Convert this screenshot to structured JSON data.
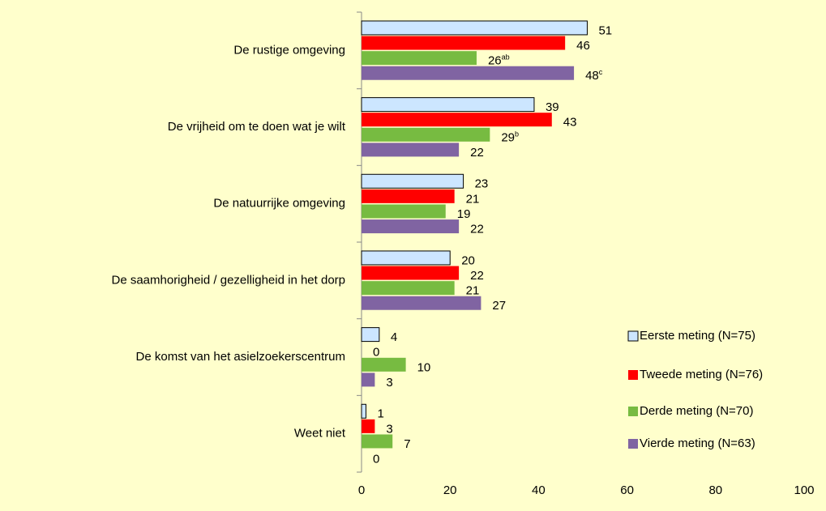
{
  "chart_data": {
    "type": "bar",
    "orientation": "horizontal",
    "categories": [
      "De rustige omgeving",
      "De vrijheid om te doen wat je wilt",
      "De natuurrijke omgeving",
      "De saamhorigheid / gezelligheid in het dorp",
      "De komst van het asielzoekerscentrum",
      "Weet niet"
    ],
    "series": [
      {
        "name": "Eerste meting (N=75)",
        "color": "#cce6ff",
        "values": [
          51,
          39,
          23,
          20,
          4,
          1
        ]
      },
      {
        "name": "Tweede meting (N=76)",
        "color": "#ff0000",
        "values": [
          46,
          43,
          21,
          22,
          0,
          3
        ]
      },
      {
        "name": "Derde meting (N=70)",
        "color": "#77bb41",
        "values": [
          26,
          29,
          19,
          21,
          10,
          7
        ],
        "value_labels": [
          "26ab",
          "29b",
          "19",
          "21",
          "10",
          "7"
        ]
      },
      {
        "name": "Vierde meting (N=63)",
        "color": "#8064a2",
        "values": [
          48,
          22,
          22,
          27,
          3,
          0
        ],
        "value_labels": [
          "48c",
          "22",
          "22",
          "27",
          "3",
          "0"
        ]
      }
    ],
    "xlim": [
      0,
      100
    ],
    "xticks": [
      0,
      20,
      40,
      60,
      80,
      100
    ],
    "grid": false,
    "legend": "lower right"
  }
}
